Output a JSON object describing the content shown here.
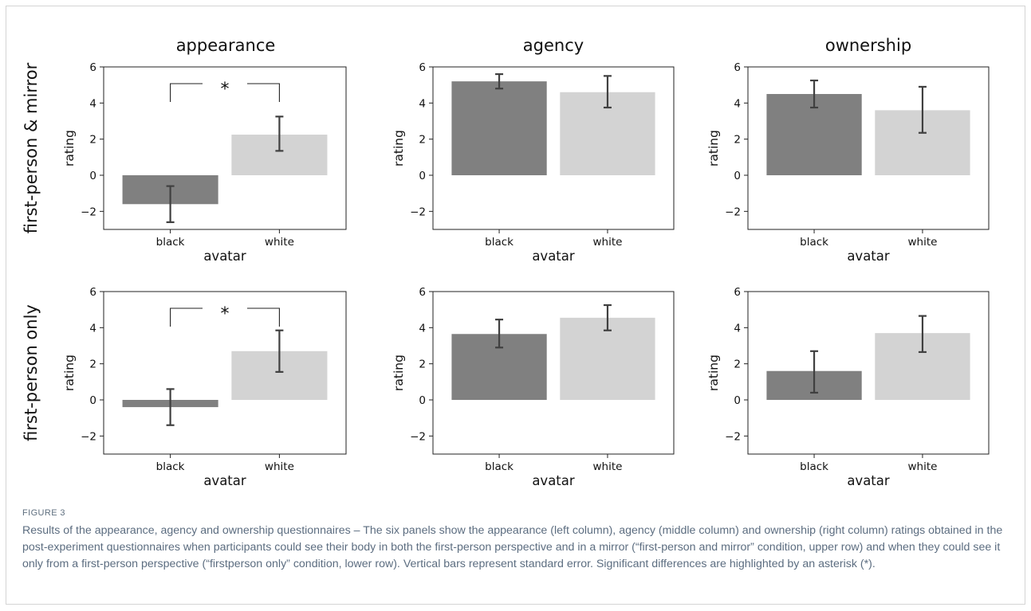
{
  "figure_label": "FIGURE 3",
  "caption": "Results of the appearance, agency and ownership questionnaires – The six panels show the appearance (left column), agency (middle column) and ownership (right column) ratings obtained in the post-experiment questionnaires when participants could see their body in both the first-person perspective and in a mirror (“first-person and mirror” condition, upper row) and when they could see it only from a first-person perspective (“firstperson only” condition, lower row). Vertical bars represent standard error. Significant differences are highlighted by an asterisk (*).",
  "colors": {
    "black_bar": "#808080",
    "white_bar": "#d3d3d3",
    "error_bar": "#404040"
  },
  "row_labels": [
    "first-person & mirror",
    "first-person only"
  ],
  "column_titles": [
    "appearance",
    "agency",
    "ownership"
  ],
  "chart_data": [
    {
      "type": "bar",
      "title": "appearance",
      "row": "first-person & mirror",
      "categories": [
        "black",
        "white"
      ],
      "values": [
        -1.6,
        2.25
      ],
      "error_low": [
        -2.6,
        1.35
      ],
      "error_high": [
        -0.6,
        3.25
      ],
      "xlabel": "avatar",
      "ylabel": "rating",
      "ylim": [
        -3,
        6
      ],
      "yticks": [
        "−2",
        "0",
        "2",
        "4",
        "6"
      ],
      "significance": "*"
    },
    {
      "type": "bar",
      "title": "agency",
      "row": "first-person & mirror",
      "categories": [
        "black",
        "white"
      ],
      "values": [
        5.2,
        4.6
      ],
      "error_low": [
        4.8,
        3.75
      ],
      "error_high": [
        5.6,
        5.5
      ],
      "xlabel": "avatar",
      "ylabel": "rating",
      "ylim": [
        -3,
        6
      ],
      "yticks": [
        "−2",
        "0",
        "2",
        "4",
        "6"
      ],
      "significance": ""
    },
    {
      "type": "bar",
      "title": "ownership",
      "row": "first-person & mirror",
      "categories": [
        "black",
        "white"
      ],
      "values": [
        4.5,
        3.6
      ],
      "error_low": [
        3.75,
        2.35
      ],
      "error_high": [
        5.25,
        4.9
      ],
      "xlabel": "avatar",
      "ylabel": "rating",
      "ylim": [
        -3,
        6
      ],
      "yticks": [
        "−2",
        "0",
        "2",
        "4",
        "6"
      ],
      "significance": ""
    },
    {
      "type": "bar",
      "title": "appearance",
      "row": "first-person only",
      "categories": [
        "black",
        "white"
      ],
      "values": [
        -0.4,
        2.7
      ],
      "error_low": [
        -1.4,
        1.55
      ],
      "error_high": [
        0.6,
        3.85
      ],
      "xlabel": "avatar",
      "ylabel": "rating",
      "ylim": [
        -3,
        6
      ],
      "yticks": [
        "−2",
        "0",
        "2",
        "4",
        "6"
      ],
      "significance": "*"
    },
    {
      "type": "bar",
      "title": "agency",
      "row": "first-person only",
      "categories": [
        "black",
        "white"
      ],
      "values": [
        3.65,
        4.55
      ],
      "error_low": [
        2.9,
        3.85
      ],
      "error_high": [
        4.45,
        5.25
      ],
      "xlabel": "avatar",
      "ylabel": "rating",
      "ylim": [
        -3,
        6
      ],
      "yticks": [
        "−2",
        "0",
        "2",
        "4",
        "6"
      ],
      "significance": ""
    },
    {
      "type": "bar",
      "title": "ownership",
      "row": "first-person only",
      "categories": [
        "black",
        "white"
      ],
      "values": [
        1.6,
        3.7
      ],
      "error_low": [
        0.4,
        2.65
      ],
      "error_high": [
        2.7,
        4.65
      ],
      "xlabel": "avatar",
      "ylabel": "rating",
      "ylim": [
        -3,
        6
      ],
      "yticks": [
        "−2",
        "0",
        "2",
        "4",
        "6"
      ],
      "significance": ""
    }
  ]
}
